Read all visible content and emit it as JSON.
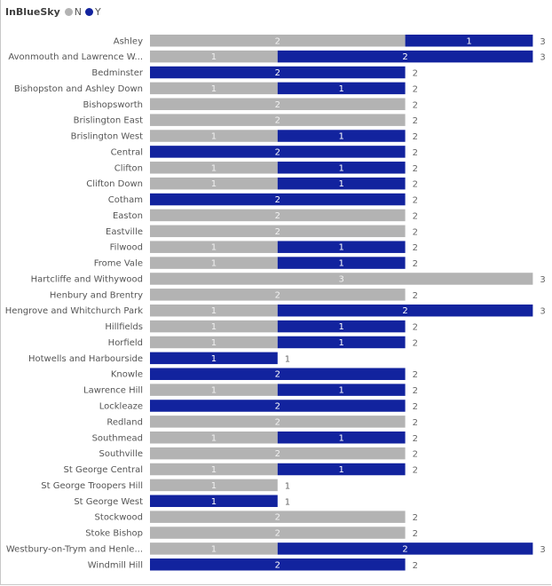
{
  "chart_data": {
    "type": "bar",
    "orientation": "horizontal",
    "stacked": true,
    "title": "",
    "legend": {
      "title": "InBlueSky",
      "placement": "top-left",
      "entries": [
        {
          "name": "N",
          "color": "#b3b3b3"
        },
        {
          "name": "Y",
          "color": "#12239e"
        }
      ]
    },
    "xlabel": "",
    "ylabel": "",
    "xlim": [
      0,
      3
    ],
    "grid": false,
    "categories": [
      "Ashley",
      "Avonmouth and Lawrence W...",
      "Bedminster",
      "Bishopston and Ashley Down",
      "Bishopsworth",
      "Brislington East",
      "Brislington West",
      "Central",
      "Clifton",
      "Clifton Down",
      "Cotham",
      "Easton",
      "Eastville",
      "Filwood",
      "Frome Vale",
      "Hartcliffe and Withywood",
      "Henbury and Brentry",
      "Hengrove and Whitchurch Park",
      "Hillfields",
      "Horfield",
      "Hotwells and Harbourside",
      "Knowle",
      "Lawrence Hill",
      "Lockleaze",
      "Redland",
      "Southmead",
      "Southville",
      "St George Central",
      "St George Troopers Hill",
      "St George West",
      "Stockwood",
      "Stoke Bishop",
      "Westbury-on-Trym and Henle...",
      "Windmill Hill"
    ],
    "series": [
      {
        "name": "N",
        "color": "#b3b3b3",
        "values": [
          2,
          1,
          0,
          1,
          2,
          2,
          1,
          0,
          1,
          1,
          0,
          2,
          2,
          1,
          1,
          3,
          2,
          1,
          1,
          1,
          0,
          0,
          1,
          0,
          2,
          1,
          2,
          1,
          1,
          0,
          2,
          2,
          1,
          0
        ]
      },
      {
        "name": "Y",
        "color": "#12239e",
        "values": [
          1,
          2,
          2,
          1,
          0,
          0,
          1,
          2,
          1,
          1,
          2,
          0,
          0,
          1,
          1,
          0,
          0,
          2,
          1,
          1,
          1,
          2,
          1,
          2,
          0,
          1,
          0,
          1,
          0,
          1,
          0,
          0,
          2,
          2
        ]
      }
    ],
    "totals": [
      3,
      3,
      2,
      2,
      2,
      2,
      2,
      2,
      2,
      2,
      2,
      2,
      2,
      2,
      2,
      3,
      2,
      3,
      2,
      2,
      1,
      2,
      2,
      2,
      2,
      2,
      2,
      2,
      1,
      1,
      2,
      2,
      3,
      2
    ]
  }
}
